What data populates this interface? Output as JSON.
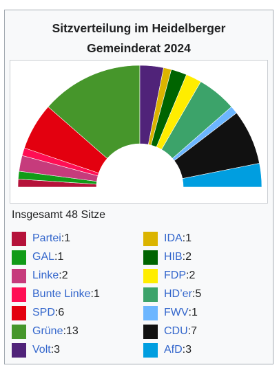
{
  "title_line1": "Sitzverteilung im Heidelberger",
  "title_line2": "Gemeinderat 2024",
  "total_label": "Insgesamt 48 Sitze",
  "colors": {
    "link": "#3366cc",
    "border": "#a2a9b1",
    "background": "#f8f9fa"
  },
  "chart_data": {
    "type": "pie",
    "subtype": "semicircle-parliament",
    "title": "Sitzverteilung im Heidelberger Gemeinderat 2024",
    "total_seats": 48,
    "categories": [
      "Partei",
      "GAL",
      "Linke",
      "Bunte Linke",
      "SPD",
      "Grüne",
      "Volt",
      "IDA",
      "HIB",
      "FDP",
      "HD’er",
      "FWV",
      "CDU",
      "AfD"
    ],
    "values": [
      1,
      1,
      2,
      1,
      6,
      13,
      3,
      1,
      2,
      2,
      5,
      1,
      7,
      3
    ],
    "colors": [
      "#b5123a",
      "#119b17",
      "#c63b7c",
      "#ff0e54",
      "#e3000f",
      "#46962b",
      "#502379",
      "#dbb400",
      "#006400",
      "#ffed00",
      "#3ca36a",
      "#6cb6ff",
      "#111111",
      "#009ee0"
    ],
    "legend_placement": "bottom"
  }
}
